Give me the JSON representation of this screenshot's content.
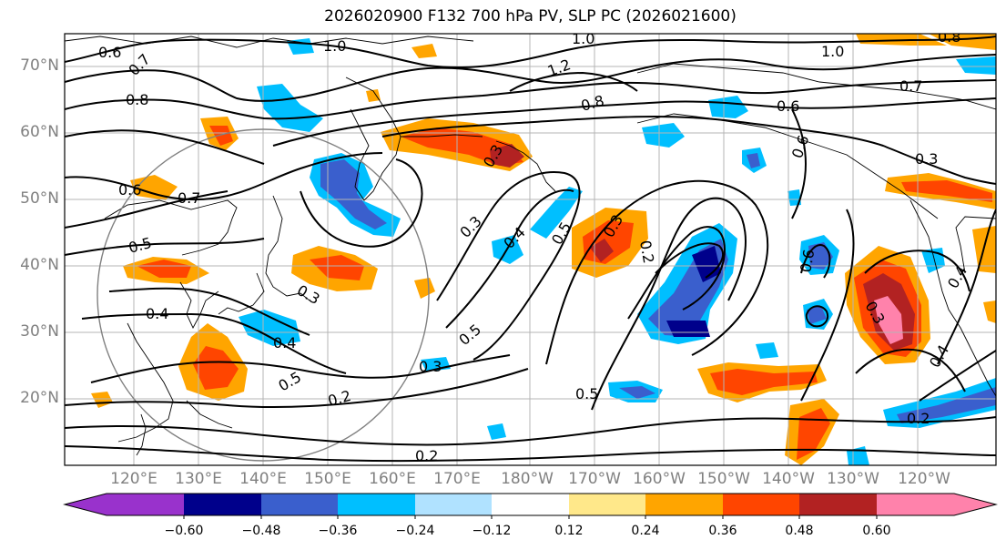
{
  "title": "2026020900 F132 700 hPa PV, SLP PC (2026021600)",
  "lat_labels": [
    "70°N",
    "60°N",
    "50°N",
    "40°N",
    "30°N",
    "20°N"
  ],
  "lon_labels": [
    "120°E",
    "130°E",
    "140°E",
    "150°E",
    "160°E",
    "170°E",
    "180°W",
    "170°W",
    "160°W",
    "150°W",
    "140°W",
    "130°W",
    "120°W"
  ],
  "colorbar": {
    "ticks": [
      "−0.60",
      "−0.48",
      "−0.36",
      "−0.24",
      "−0.12",
      "0.12",
      "0.24",
      "0.36",
      "0.48",
      "0.60"
    ],
    "colors": [
      "#9932CC",
      "#00008B",
      "#3A5FCD",
      "#00BFFF",
      "#B0E2FF",
      "#FFFFFF",
      "#FFE88A",
      "#FFA500",
      "#FF4500",
      "#B22222",
      "#FF82AB"
    ]
  },
  "contour_labels": [
    "0.6",
    "1.0",
    "1.0",
    "1.2",
    "1.0",
    "0.8",
    "0.7",
    "0.8",
    "0.8",
    "0.6",
    "0.7",
    "0.6",
    "0.6",
    "0.7",
    "0.3",
    "0.5",
    "0.3",
    "0.3",
    "0.4",
    "0.5",
    "0.3",
    "0.2",
    "0.3",
    "0.6",
    "0.3",
    "0.4",
    "0.4",
    "0.5",
    "0.3",
    "0.5",
    "0.2",
    "0.2",
    "0.2",
    "0.4",
    "0.5",
    "0.4"
  ]
}
